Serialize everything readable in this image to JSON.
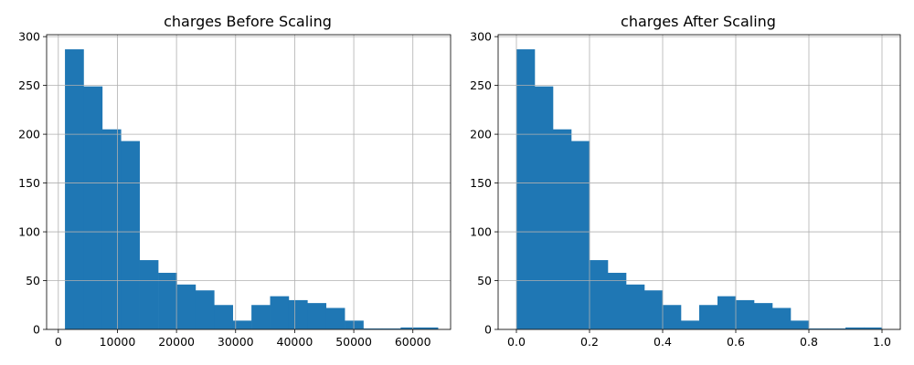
{
  "colors": {
    "bar": "#1f77b4",
    "grid": "#b0b0b0"
  },
  "chart_data": [
    {
      "type": "bar",
      "title": "charges Before Scaling",
      "xlabel": "",
      "ylabel": "",
      "grid": true,
      "xlim": [
        -1982,
        66384
      ],
      "ylim": [
        0,
        302
      ],
      "xticks": [
        0,
        10000,
        20000,
        30000,
        40000,
        50000,
        60000
      ],
      "xtick_labels": [
        "0",
        "10000",
        "20000",
        "30000",
        "40000",
        "50000",
        "60000"
      ],
      "yticks": [
        0,
        50,
        100,
        150,
        200,
        250,
        300
      ],
      "ytick_labels": [
        "0",
        "50",
        "100",
        "150",
        "200",
        "250",
        "300"
      ],
      "bin_start": 1122,
      "bin_width": 3156,
      "values": [
        287,
        249,
        205,
        193,
        71,
        58,
        46,
        40,
        25,
        9,
        25,
        34,
        30,
        27,
        22,
        9,
        1,
        1,
        2,
        2
      ]
    },
    {
      "type": "bar",
      "title": "charges After Scaling",
      "xlabel": "",
      "ylabel": "",
      "grid": true,
      "xlim": [
        -0.05,
        1.05
      ],
      "ylim": [
        0,
        302
      ],
      "xticks": [
        0.0,
        0.2,
        0.4,
        0.6,
        0.8,
        1.0
      ],
      "xtick_labels": [
        "0.0",
        "0.2",
        "0.4",
        "0.6",
        "0.8",
        "1.0"
      ],
      "yticks": [
        0,
        50,
        100,
        150,
        200,
        250,
        300
      ],
      "ytick_labels": [
        "0",
        "50",
        "100",
        "150",
        "200",
        "250",
        "300"
      ],
      "bin_start": 0.0,
      "bin_width": 0.05,
      "values": [
        287,
        249,
        205,
        193,
        71,
        58,
        46,
        40,
        25,
        9,
        25,
        34,
        30,
        27,
        22,
        9,
        1,
        1,
        2,
        2
      ]
    }
  ]
}
